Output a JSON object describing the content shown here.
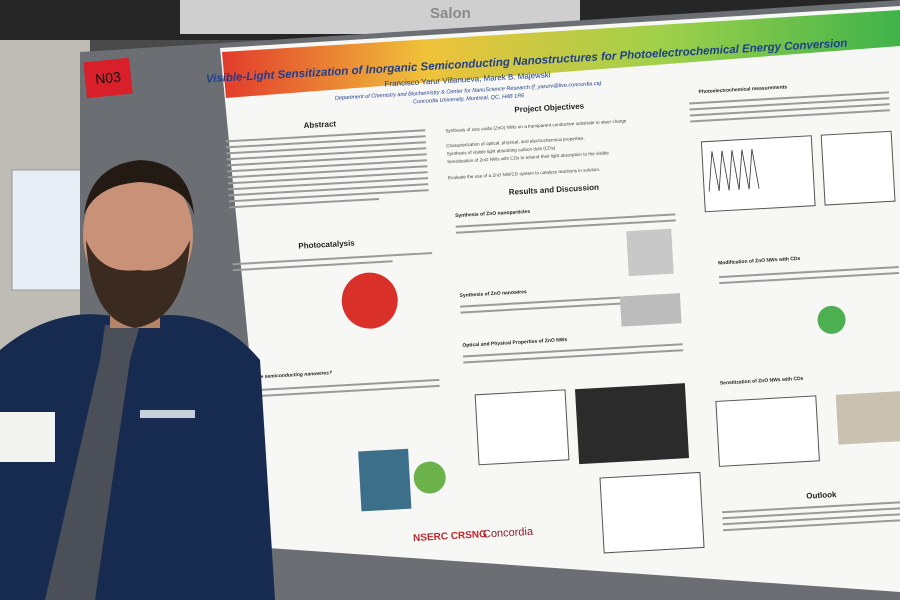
{
  "sign": {
    "room": "Salon"
  },
  "poster": {
    "number": "N03",
    "title": "Visible-Light Sensitization of Inorganic Semiconducting Nanostructures for Photoelectrochemical Energy Conversion",
    "authors": "Francisco Yarur Villanueva, Marek B. Majewski",
    "affiliation": "Department of Chemistry and Biochemistry & Center for NanoScience Research (f_yarurv@live.concordia.ca)",
    "institution": "Concordia University, Montreal, QC, H4B 1R6",
    "sections": [
      "Abstract",
      "Photocatalysis",
      "Project Objectives",
      "Results and Discussion",
      "Photoelectrochemical measurements",
      "Modification of ZnO NWs with CDs",
      "Sensitization of ZnO NWs with CDs",
      "Outlook"
    ],
    "subheadings": [
      "Synthesis of ZnO nanoparticles",
      "Synthesis of ZnO nanowires",
      "Optical and Physical Properties of ZnO NWs",
      "Why are semiconducting nanowires?"
    ],
    "objectives": [
      "Synthesis of size oxide (ZnO) NWs on a transparent conductive substrate to steer charge",
      "Characterization of optical, physical, and electrochemical properties.",
      "Synthesis of visible light absorbing carbon dots (CDs)",
      "Sensitization of ZnO NWs with CDs to extend their light absorption to the visible",
      "Evaluate the use of a ZnO NW/CD system to catalyze reactions in solution."
    ],
    "logos": [
      "NSERC CRSNG",
      "Concordia"
    ]
  }
}
